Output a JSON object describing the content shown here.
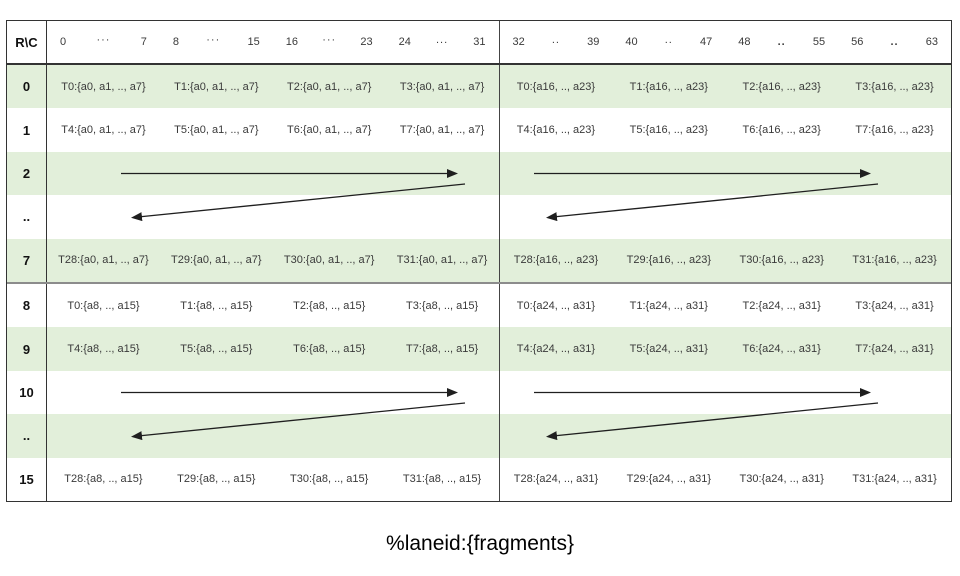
{
  "colors": {
    "row_shade_green": "#e2efda",
    "row_white": "#ffffff",
    "border_dark": "#333333",
    "mid_divider_gray": "#8c8c8c",
    "text_dark": "#3a3a3a",
    "arrow_black": "#1f1f1f"
  },
  "table": {
    "corner": "R\\C",
    "col_groups": [
      {
        "start": "0",
        "dots": "···",
        "end": "7",
        "bold": false
      },
      {
        "start": "8",
        "dots": "···",
        "end": "15",
        "bold": false
      },
      {
        "start": "16",
        "dots": "···",
        "end": "23",
        "bold": false
      },
      {
        "start": "24",
        "dots": "...",
        "end": "31",
        "bold": false
      },
      {
        "start": "32",
        "dots": "..",
        "end": "39",
        "bold": false
      },
      {
        "start": "40",
        "dots": "..",
        "end": "47",
        "bold": false
      },
      {
        "start": "48",
        "dots": "..",
        "end": "55",
        "bold": true
      },
      {
        "start": "56",
        "dots": "..",
        "end": "63",
        "bold": true
      }
    ],
    "rows": [
      {
        "label": "0",
        "shaded": true,
        "type": "cells",
        "left": [
          "T0:{a0, a1, .., a7}",
          "T1:{a0, a1, .., a7}",
          "T2:{a0, a1, .., a7}",
          "T3:{a0, a1, .., a7}"
        ],
        "right": [
          "T0:{a16, .., a23}",
          "T1:{a16, .., a23}",
          "T2:{a16, .., a23}",
          "T3:{a16, .., a23}"
        ]
      },
      {
        "label": "1",
        "shaded": false,
        "type": "cells",
        "left": [
          "T4:{a0, a1, .., a7}",
          "T5:{a0, a1, .., a7}",
          "T6:{a0, a1, .., a7}",
          "T7:{a0, a1, .., a7}"
        ],
        "right": [
          "T4:{a16, .., a23}",
          "T5:{a16, .., a23}",
          "T6:{a16, .., a23}",
          "T7:{a16, .., a23}"
        ]
      },
      {
        "label": "2",
        "shaded": true,
        "type": "arrow-right"
      },
      {
        "label": "..",
        "shaded": false,
        "type": "arrow-left"
      },
      {
        "label": "7",
        "shaded": true,
        "type": "cells",
        "left": [
          "T28:{a0, a1, .., a7}",
          "T29:{a0, a1, .., a7}",
          "T30:{a0, a1, .., a7}",
          "T31:{a0, a1, .., a7}"
        ],
        "right": [
          "T28:{a16, .., a23}",
          "T29:{a16, .., a23}",
          "T30:{a16, .., a23}",
          "T31:{a16, .., a23}"
        ]
      },
      {
        "label": "8",
        "shaded": false,
        "type": "cells",
        "left": [
          "T0:{a8, .., a15}",
          "T1:{a8, .., a15}",
          "T2:{a8, .., a15}",
          "T3:{a8, .., a15}"
        ],
        "right": [
          "T0:{a24, .., a31}",
          "T1:{a24, .., a31}",
          "T2:{a24, .., a31}",
          "T3:{a24, .., a31}"
        ]
      },
      {
        "label": "9",
        "shaded": true,
        "type": "cells",
        "left": [
          "T4:{a8, .., a15}",
          "T5:{a8, .., a15}",
          "T6:{a8, .., a15}",
          "T7:{a8, .., a15}"
        ],
        "right": [
          "T4:{a24, .., a31}",
          "T5:{a24, .., a31}",
          "T6:{a24, .., a31}",
          "T7:{a24, .., a31}"
        ]
      },
      {
        "label": "10",
        "shaded": false,
        "type": "arrow-right"
      },
      {
        "label": "..",
        "shaded": true,
        "type": "arrow-left"
      },
      {
        "label": "15",
        "shaded": false,
        "type": "cells",
        "left": [
          "T28:{a8, .., a15}",
          "T29:{a8, .., a15}",
          "T30:{a8, .., a15}",
          "T31:{a8, .., a15}"
        ],
        "right": [
          "T28:{a24, .., a31}",
          "T29:{a24, .., a31}",
          "T30:{a24, .., a31}",
          "T31:{a24, .., a31}"
        ]
      }
    ]
  },
  "caption": "%laneid:{fragments}"
}
